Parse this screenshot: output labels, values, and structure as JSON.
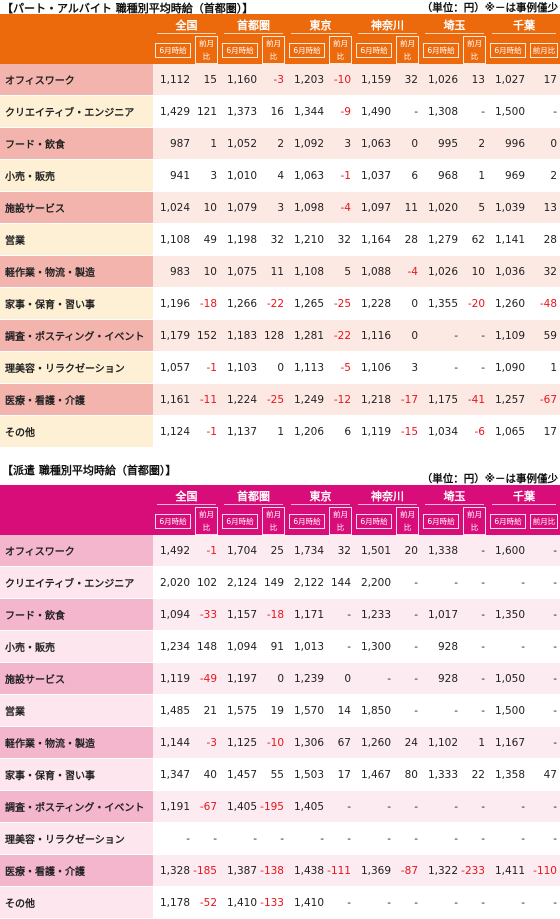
{
  "part_time": {
    "title": "【パート・アルバイト 職種別平均時給（首都圏）】",
    "unit_note": "（単位：円）※－は事例僅少",
    "regions": [
      "全国",
      "首都圏",
      "東京",
      "神奈川",
      "埼玉",
      "千葉"
    ],
    "sub_headers": {
      "wage": "6月時給",
      "change": "前月比"
    },
    "rows": [
      {
        "label": "オフィスワーク",
        "cells": [
          "1,112",
          "15",
          "1,160",
          "-3",
          "1,203",
          "-10",
          "1,159",
          "32",
          "1,026",
          "13",
          "1,027",
          "17"
        ]
      },
      {
        "label": "クリエイティブ・エンジニア",
        "cells": [
          "1,429",
          "121",
          "1,373",
          "16",
          "1,344",
          "-9",
          "1,490",
          "-",
          "1,308",
          "-",
          "1,500",
          "-"
        ]
      },
      {
        "label": "フード・飲食",
        "cells": [
          "987",
          "1",
          "1,052",
          "2",
          "1,092",
          "3",
          "1,063",
          "0",
          "995",
          "2",
          "996",
          "0"
        ]
      },
      {
        "label": "小売・販売",
        "cells": [
          "941",
          "3",
          "1,010",
          "4",
          "1,063",
          "-1",
          "1,037",
          "6",
          "968",
          "1",
          "969",
          "2"
        ]
      },
      {
        "label": "施設サービス",
        "cells": [
          "1,024",
          "10",
          "1,079",
          "3",
          "1,098",
          "-4",
          "1,097",
          "11",
          "1,020",
          "5",
          "1,039",
          "13"
        ]
      },
      {
        "label": "営業",
        "cells": [
          "1,108",
          "49",
          "1,198",
          "32",
          "1,210",
          "32",
          "1,164",
          "28",
          "1,279",
          "62",
          "1,141",
          "28"
        ]
      },
      {
        "label": "軽作業・物流・製造",
        "cells": [
          "983",
          "10",
          "1,075",
          "11",
          "1,108",
          "5",
          "1,088",
          "-4",
          "1,026",
          "10",
          "1,036",
          "32"
        ]
      },
      {
        "label": "家事・保育・習い事",
        "cells": [
          "1,196",
          "-18",
          "1,266",
          "-22",
          "1,265",
          "-25",
          "1,228",
          "0",
          "1,355",
          "-20",
          "1,260",
          "-48"
        ]
      },
      {
        "label": "調査・ポスティング・イベント",
        "cells": [
          "1,179",
          "152",
          "1,183",
          "128",
          "1,281",
          "-22",
          "1,116",
          "0",
          "-",
          "-",
          "1,109",
          "59"
        ]
      },
      {
        "label": "理美容・リラクゼーション",
        "cells": [
          "1,057",
          "-1",
          "1,103",
          "0",
          "1,113",
          "-5",
          "1,106",
          "3",
          "-",
          "-",
          "1,090",
          "1"
        ]
      },
      {
        "label": "医療・看護・介護",
        "cells": [
          "1,161",
          "-11",
          "1,224",
          "-25",
          "1,249",
          "-12",
          "1,218",
          "-17",
          "1,175",
          "-41",
          "1,257",
          "-67"
        ]
      },
      {
        "label": "その他",
        "cells": [
          "1,124",
          "-1",
          "1,137",
          "1",
          "1,206",
          "6",
          "1,119",
          "-15",
          "1,034",
          "-6",
          "1,065",
          "17"
        ]
      }
    ]
  },
  "dispatch": {
    "title": "【派遣 職種別平均時給（首都圏）】",
    "unit_note": "（単位：円）※－は事例僅少",
    "regions": [
      "全国",
      "首都圏",
      "東京",
      "神奈川",
      "埼玉",
      "千葉"
    ],
    "sub_headers": {
      "wage": "6月時給",
      "change": "前月比"
    },
    "rows": [
      {
        "label": "オフィスワーク",
        "cells": [
          "1,492",
          "-1",
          "1,704",
          "25",
          "1,734",
          "32",
          "1,501",
          "20",
          "1,338",
          "-",
          "1,600",
          "-"
        ]
      },
      {
        "label": "クリエイティブ・エンジニア",
        "cells": [
          "2,020",
          "102",
          "2,124",
          "149",
          "2,122",
          "144",
          "2,200",
          "-",
          "-",
          "-",
          "-",
          "-"
        ]
      },
      {
        "label": "フード・飲食",
        "cells": [
          "1,094",
          "-33",
          "1,157",
          "-18",
          "1,171",
          "-",
          "1,233",
          "-",
          "1,017",
          "-",
          "1,350",
          "-"
        ]
      },
      {
        "label": "小売・販売",
        "cells": [
          "1,234",
          "148",
          "1,094",
          "91",
          "1,013",
          "-",
          "1,300",
          "-",
          "928",
          "-",
          "-",
          "-"
        ]
      },
      {
        "label": "施設サービス",
        "cells": [
          "1,119",
          "-49",
          "1,197",
          "0",
          "1,239",
          "0",
          "-",
          "-",
          "928",
          "-",
          "1,050",
          "-"
        ]
      },
      {
        "label": "営業",
        "cells": [
          "1,485",
          "21",
          "1,575",
          "19",
          "1,570",
          "14",
          "1,850",
          "-",
          "-",
          "-",
          "1,500",
          "-"
        ]
      },
      {
        "label": "軽作業・物流・製造",
        "cells": [
          "1,144",
          "-3",
          "1,125",
          "-10",
          "1,306",
          "67",
          "1,260",
          "24",
          "1,102",
          "1",
          "1,167",
          "-"
        ]
      },
      {
        "label": "家事・保育・習い事",
        "cells": [
          "1,347",
          "40",
          "1,457",
          "55",
          "1,503",
          "17",
          "1,467",
          "80",
          "1,333",
          "22",
          "1,358",
          "47"
        ]
      },
      {
        "label": "調査・ポスティング・イベント",
        "cells": [
          "1,191",
          "-67",
          "1,405",
          "-195",
          "1,405",
          "-",
          "-",
          "-",
          "-",
          "-",
          "-",
          "-"
        ]
      },
      {
        "label": "理美容・リラクゼーション",
        "cells": [
          "-",
          "-",
          "-",
          "-",
          "-",
          "-",
          "-",
          "-",
          "-",
          "-",
          "-",
          "-"
        ]
      },
      {
        "label": "医療・看護・介護",
        "cells": [
          "1,328",
          "-185",
          "1,387",
          "-138",
          "1,438",
          "-111",
          "1,369",
          "-87",
          "1,322",
          "-233",
          "1,411",
          "-110"
        ]
      },
      {
        "label": "その他",
        "cells": [
          "1,178",
          "-52",
          "1,410",
          "-133",
          "1,410",
          "-",
          "-",
          "-",
          "-",
          "-",
          "-",
          "-"
        ]
      }
    ]
  }
}
